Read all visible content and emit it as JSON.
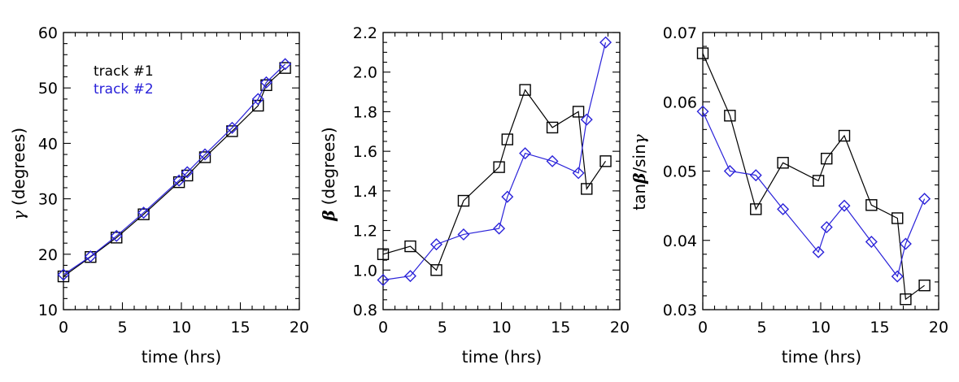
{
  "colors": {
    "series_1": "#000000",
    "series_2": "#2a22d9"
  },
  "chart_data": [
    {
      "type": "line",
      "title": "",
      "xlabel": "time (hrs)",
      "ylabel_symbol": "γ",
      "ylabel": "(degrees)",
      "xlim": [
        0,
        20
      ],
      "ylim": [
        10,
        60
      ],
      "xticks": [
        0,
        5,
        10,
        15,
        20
      ],
      "yticks": [
        10,
        20,
        30,
        40,
        50,
        60
      ],
      "ytick_labels": [
        "10",
        "20",
        "30",
        "40",
        "50",
        "60"
      ],
      "legend": {
        "position": "top-left",
        "entries": [
          "track #1",
          "track #2"
        ]
      },
      "series": [
        {
          "name": "track #1",
          "marker": "square",
          "x": [
            0,
            2.3,
            4.5,
            6.8,
            9.8,
            10.5,
            12.0,
            14.3,
            16.5,
            17.2,
            18.8
          ],
          "y": [
            16.0,
            19.5,
            23.0,
            27.2,
            33.0,
            34.2,
            37.5,
            42.2,
            46.8,
            50.5,
            53.6
          ]
        },
        {
          "name": "track #2",
          "marker": "diamond",
          "x": [
            0,
            2.3,
            4.5,
            6.8,
            9.8,
            10.5,
            12.0,
            14.3,
            16.5,
            17.2,
            18.8
          ],
          "y": [
            16.3,
            19.6,
            23.3,
            27.5,
            33.3,
            34.8,
            38.0,
            42.8,
            48.0,
            51.0,
            54.3
          ]
        }
      ]
    },
    {
      "type": "line",
      "title": "",
      "xlabel": "time (hrs)",
      "ylabel_symbol": "β",
      "ylabel": "(degrees)",
      "xlim": [
        0,
        20
      ],
      "ylim": [
        0.8,
        2.2
      ],
      "xticks": [
        0,
        5,
        10,
        15,
        20
      ],
      "yticks": [
        0.8,
        1.0,
        1.2,
        1.4,
        1.6,
        1.8,
        2.0,
        2.2
      ],
      "ytick_labels": [
        "0.8",
        "1.0",
        "1.2",
        "1.4",
        "1.6",
        "1.8",
        "2.0",
        "2.2"
      ],
      "series": [
        {
          "name": "track #1",
          "marker": "square",
          "x": [
            0,
            2.3,
            4.5,
            6.8,
            9.8,
            10.5,
            12.0,
            14.3,
            16.5,
            17.2,
            18.8
          ],
          "y": [
            1.08,
            1.12,
            1.0,
            1.35,
            1.52,
            1.66,
            1.91,
            1.72,
            1.8,
            1.41,
            1.55
          ]
        },
        {
          "name": "track #2",
          "marker": "diamond",
          "x": [
            0,
            2.3,
            4.5,
            6.8,
            9.8,
            10.5,
            12.0,
            14.3,
            16.5,
            17.2,
            18.8
          ],
          "y": [
            0.95,
            0.97,
            1.13,
            1.18,
            1.21,
            1.37,
            1.59,
            1.55,
            1.49,
            1.76,
            2.15
          ]
        }
      ]
    },
    {
      "type": "line",
      "title": "",
      "xlabel": "time (hrs)",
      "ylabel_prefix": "tan",
      "ylabel_symbol": "β",
      "ylabel_suffix": "/sin",
      "ylabel_symbol_2": "γ",
      "xlim": [
        0,
        20
      ],
      "ylim": [
        0.03,
        0.07
      ],
      "xticks": [
        0,
        5,
        10,
        15,
        20
      ],
      "yticks": [
        0.03,
        0.04,
        0.05,
        0.06,
        0.07
      ],
      "ytick_labels": [
        "0.03",
        "0.04",
        "0.05",
        "0.06",
        "0.07"
      ],
      "series": [
        {
          "name": "track #1",
          "marker": "square",
          "x": [
            0,
            2.3,
            4.5,
            6.8,
            9.8,
            10.5,
            12.0,
            14.3,
            16.5,
            17.2,
            18.8
          ],
          "y": [
            0.067,
            0.058,
            0.0445,
            0.0512,
            0.0486,
            0.0518,
            0.0551,
            0.0451,
            0.0432,
            0.0315,
            0.0335
          ]
        },
        {
          "name": "track #2",
          "marker": "diamond",
          "x": [
            0,
            2.3,
            4.5,
            6.8,
            9.8,
            10.5,
            12.0,
            14.3,
            16.5,
            17.2,
            18.8
          ],
          "y": [
            0.0586,
            0.05,
            0.0494,
            0.0445,
            0.0383,
            0.0419,
            0.045,
            0.0398,
            0.0348,
            0.0395,
            0.046
          ]
        }
      ]
    }
  ]
}
